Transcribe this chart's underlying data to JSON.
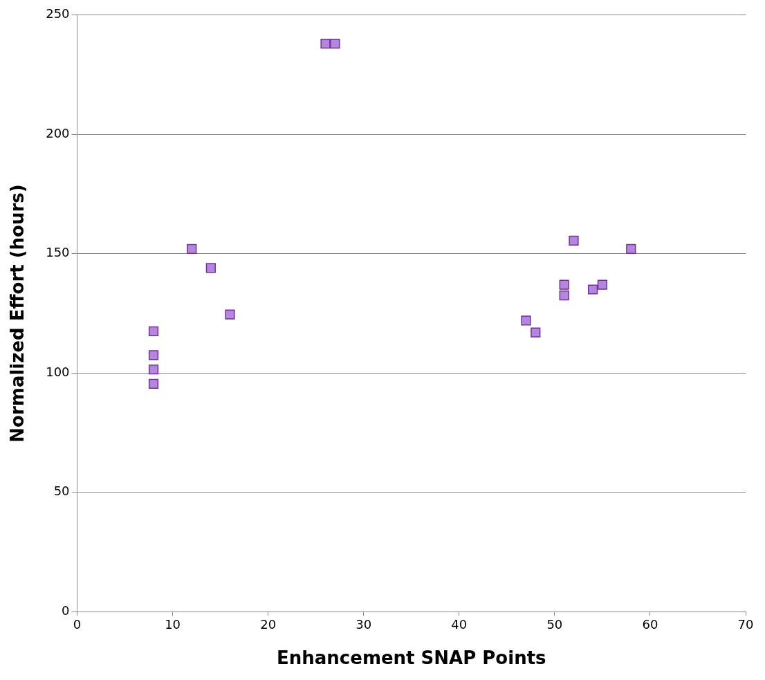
{
  "chart_data": {
    "type": "scatter",
    "xlabel": "Enhancement SNAP Points",
    "ylabel": "Normalized Effort (hours)",
    "x": [
      8,
      8,
      8,
      8,
      12,
      14,
      16,
      26,
      27,
      47,
      48,
      51,
      51,
      52,
      54,
      55,
      58
    ],
    "values": [
      117.5,
      107.5,
      101.5,
      95.5,
      152,
      144,
      124.5,
      238,
      238,
      122,
      117,
      137,
      132.5,
      155.5,
      135,
      137,
      152
    ],
    "color": "#b486dc",
    "xlim": [
      0,
      70
    ],
    "xticks": [
      0,
      10,
      20,
      30,
      40,
      50,
      60,
      70
    ],
    "ylim": [
      0,
      250
    ],
    "yticks": [
      0,
      50,
      100,
      150,
      200,
      250
    ],
    "grid": "y",
    "marker": "square",
    "legend": false
  }
}
